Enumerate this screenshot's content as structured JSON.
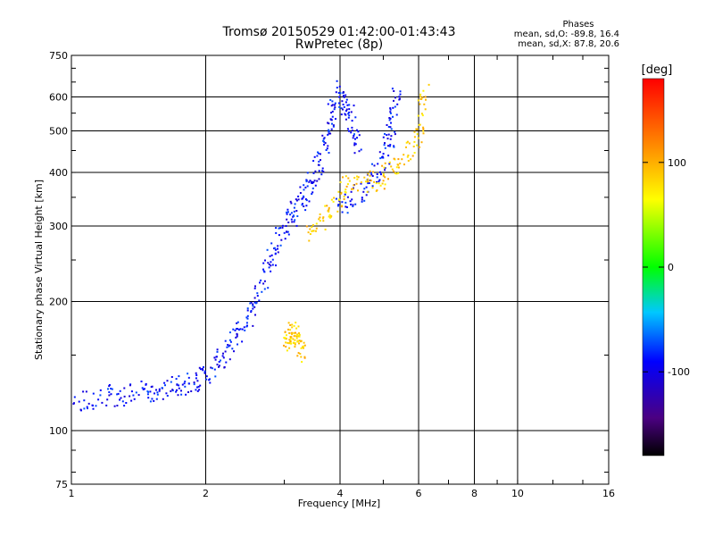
{
  "title": "Tromsø 20150529 01:42:00-01:43:43",
  "subtitle": "RwPretec (8p)",
  "stats": {
    "heading": "Phases",
    "line1": "mean, sd,O: -89.8, 16.4",
    "line2": "mean, sd,X:  87.8, 20.6"
  },
  "colorbar": {
    "unit": "[deg]",
    "ticks": [
      "100",
      "0",
      "-100"
    ],
    "tick_values": [
      100,
      0,
      -100
    ],
    "range": [
      -180,
      180
    ]
  },
  "chart_data": {
    "type": "scatter",
    "title": "Tromsø 20150529 01:42:00-01:43:43",
    "subtitle": "RwPretec (8p)",
    "xlabel": "Frequency [MHz]",
    "ylabel": "Stationary phase Virtual Height [km]",
    "x_scale": "log",
    "y_scale": "log",
    "xlim": [
      1,
      16
    ],
    "ylim": [
      75,
      750
    ],
    "x_ticks": [
      1,
      2,
      4,
      6,
      8,
      10,
      16
    ],
    "x_tick_labels": [
      "1",
      "2",
      "4",
      "6",
      "8",
      "10",
      "16"
    ],
    "x_grid_lines": [
      2,
      4,
      6,
      8,
      10
    ],
    "y_ticks": [
      75,
      100,
      200,
      300,
      400,
      500,
      600,
      750
    ],
    "y_tick_labels": [
      "75",
      "100",
      "200",
      "300",
      "400",
      "500",
      "600",
      "750"
    ],
    "y_grid_lines": [
      100,
      200,
      300,
      400,
      500,
      600
    ],
    "grid": true,
    "color_scale": "rainbow (black → purple → blue → cyan → green → yellow → orange → red)",
    "approximate_traces": [
      {
        "label": "O-mode, lower F trace",
        "phase": -90,
        "x": [
          1.0,
          1.2,
          1.4,
          1.6,
          1.8,
          2.0,
          2.2,
          2.4,
          2.6,
          2.8,
          3.0
        ],
        "y": [
          115,
          120,
          122,
          125,
          128,
          135,
          150,
          175,
          200,
          250,
          300
        ]
      },
      {
        "label": "O-mode, F cusp",
        "phase": -90,
        "x": [
          3.0,
          3.2,
          3.4,
          3.6,
          3.8,
          4.0,
          4.2,
          4.4
        ],
        "y": [
          300,
          330,
          370,
          420,
          520,
          620,
          550,
          450
        ]
      },
      {
        "label": "O-mode, upper trace",
        "phase": -90,
        "x": [
          4.0,
          4.5,
          5.0,
          5.2,
          5.4
        ],
        "y": [
          330,
          360,
          420,
          500,
          620
        ]
      },
      {
        "label": "X-mode trace",
        "phase": 88,
        "x": [
          3.4,
          3.8,
          4.2,
          4.8,
          5.4,
          6.0,
          6.2
        ],
        "y": [
          290,
          320,
          380,
          380,
          420,
          480,
          640
        ]
      },
      {
        "label": "X-mode cluster",
        "phase": 88,
        "x": [
          3.0,
          3.1,
          3.2,
          3.3
        ],
        "y": [
          160,
          170,
          165,
          150
        ]
      }
    ]
  }
}
